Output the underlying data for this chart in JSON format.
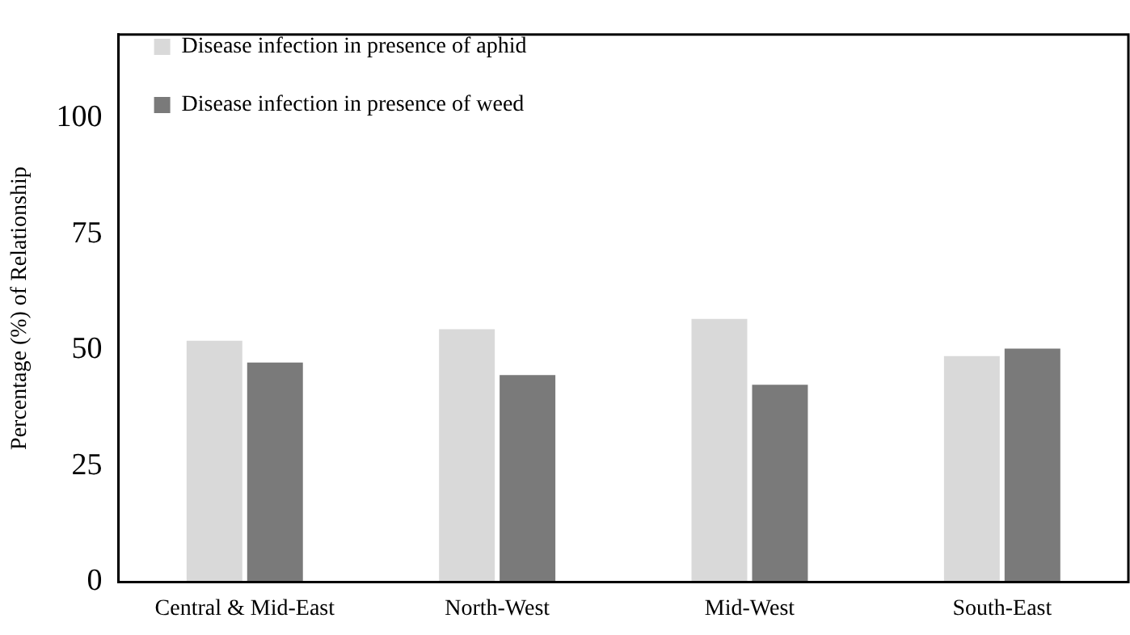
{
  "chart_data": {
    "type": "bar",
    "ylabel": "Percentage (%) of Relationship",
    "categories": [
      "Central & Mid-East",
      "North-West",
      "Mid-West",
      "South-East"
    ],
    "series": [
      {
        "name": "Disease infection in presence of aphid",
        "color": "#d9d9d9",
        "values": [
          52,
          54.5,
          56.7,
          48.7
        ]
      },
      {
        "name": "Disease infection in presence of weed",
        "color": "#7a7a7a",
        "values": [
          47.3,
          44.6,
          42.5,
          50.3
        ]
      }
    ],
    "ylim": [
      0,
      118
    ],
    "yticks": [
      0,
      25,
      50,
      75,
      100
    ],
    "grid": false,
    "legend": "top"
  }
}
